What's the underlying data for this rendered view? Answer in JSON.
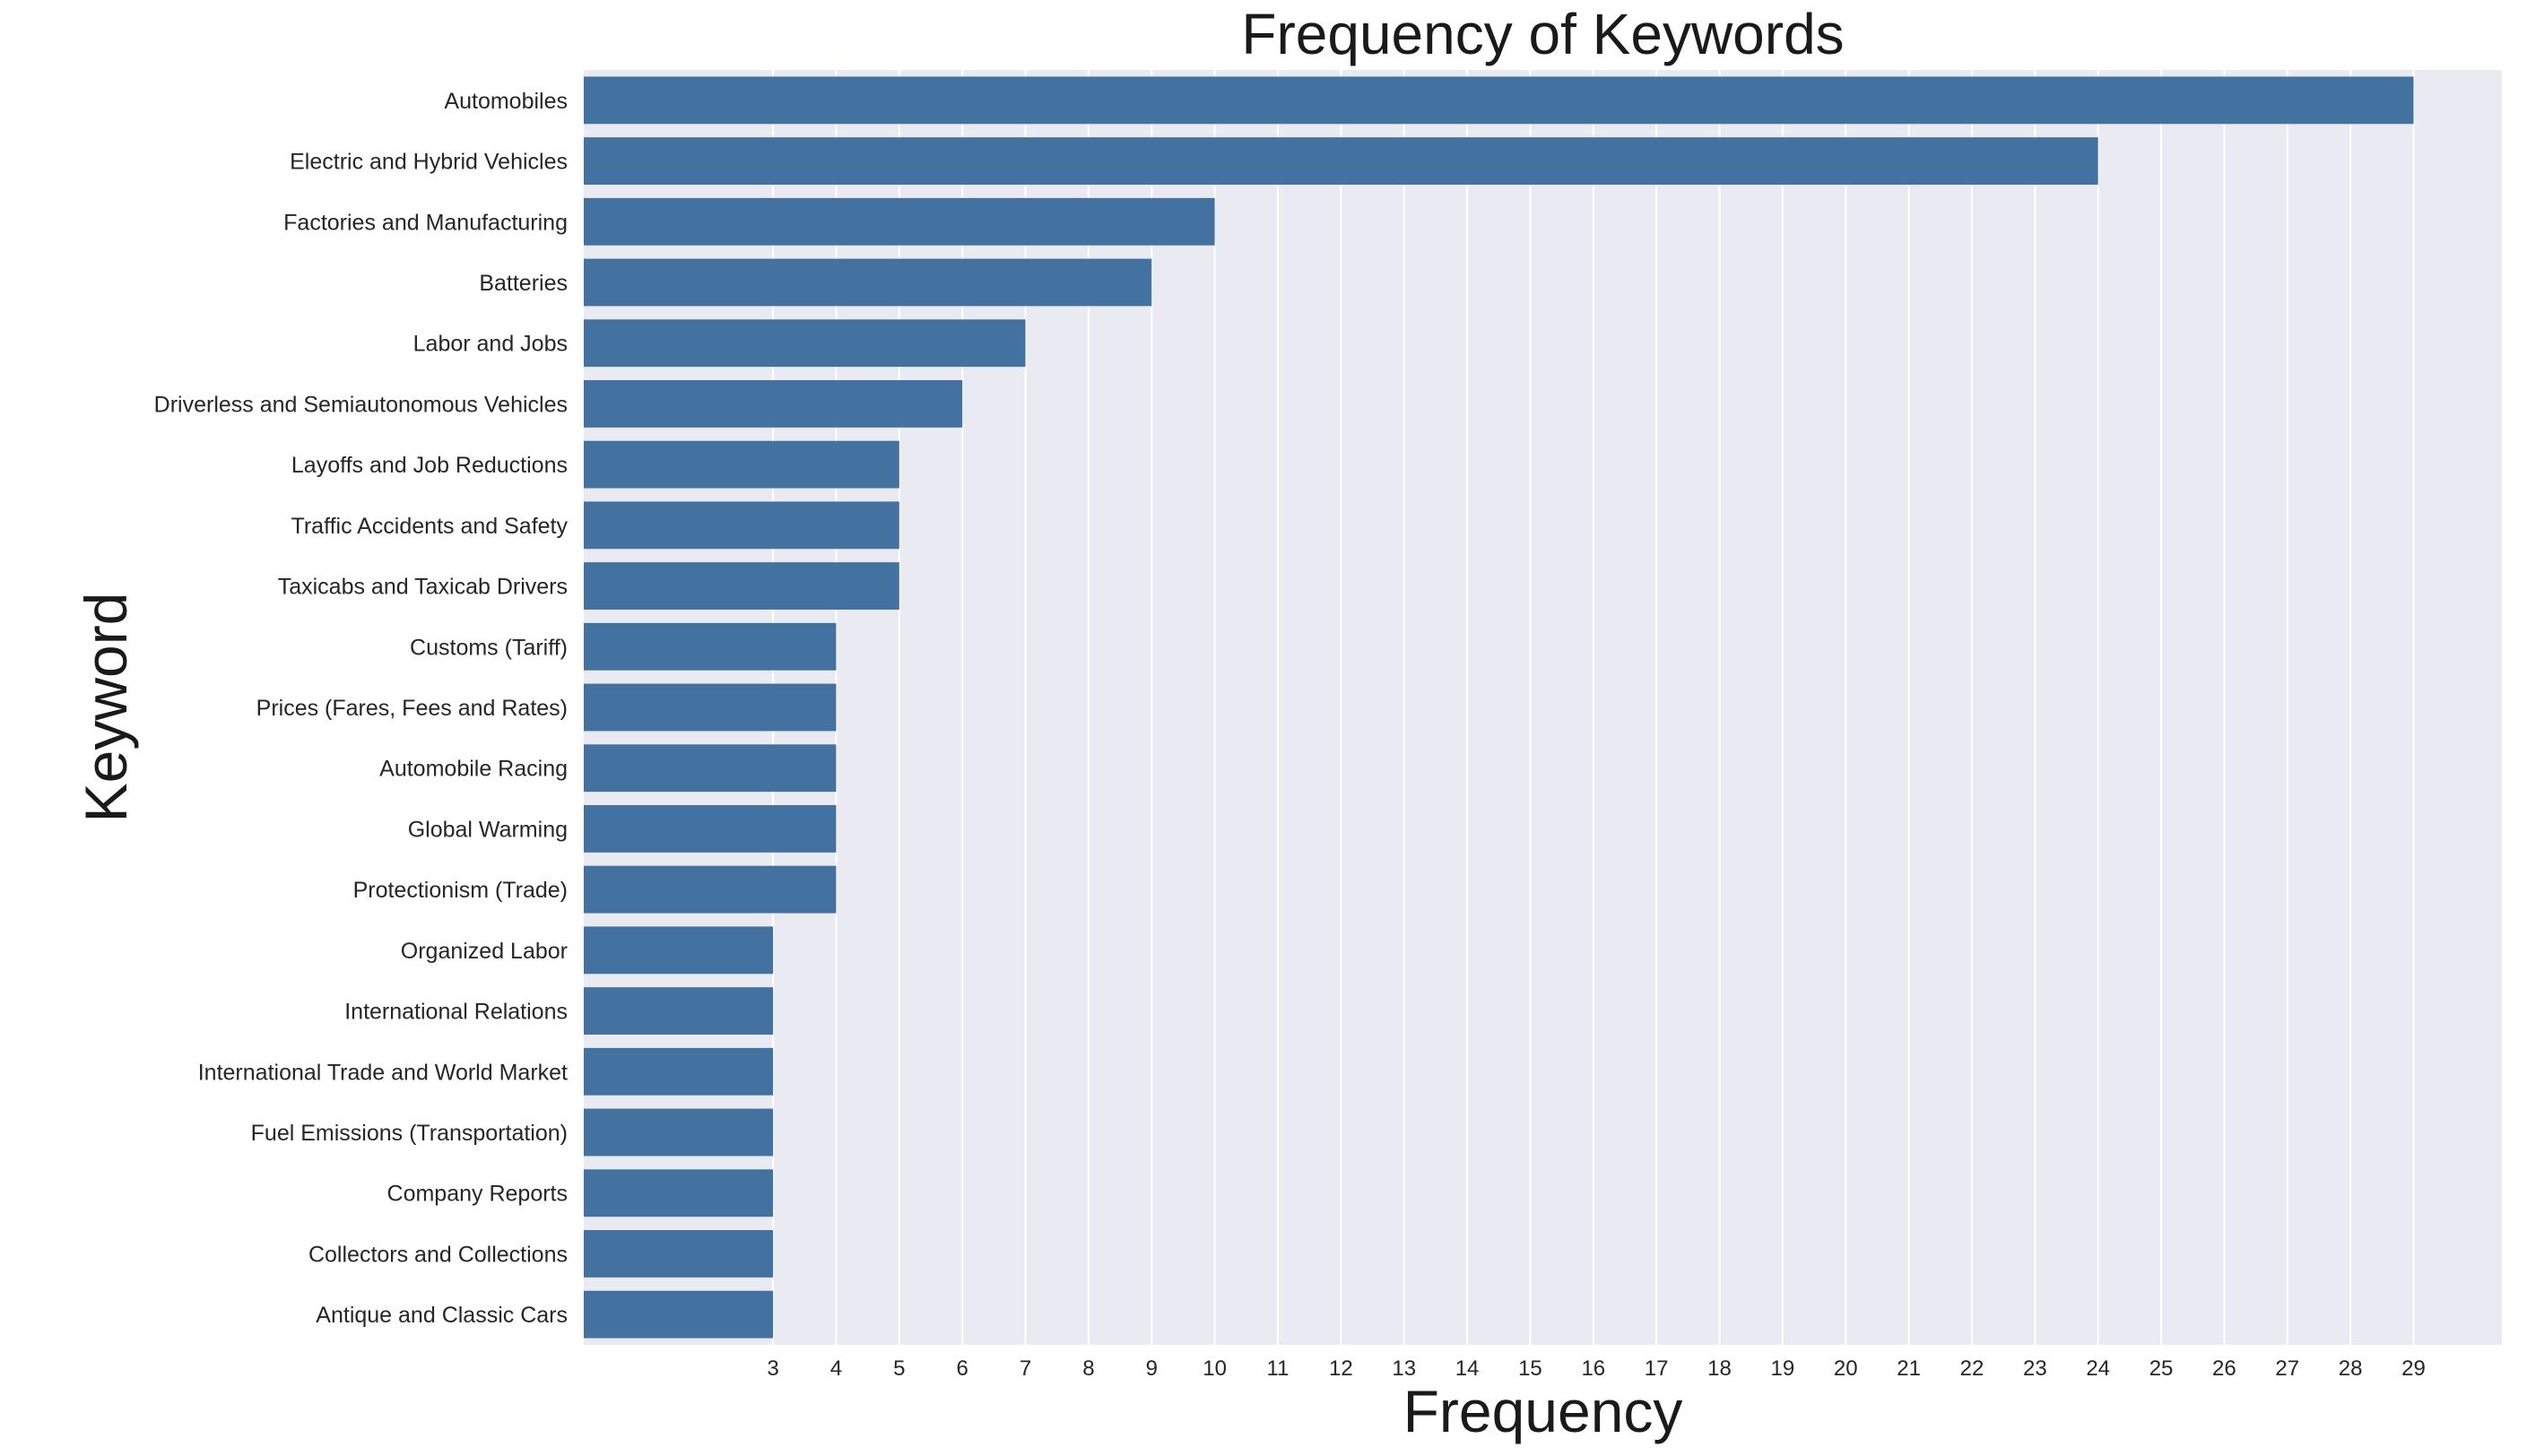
{
  "chart_data": {
    "type": "bar",
    "orientation": "horizontal",
    "title": "Frequency of Keywords",
    "xlabel": "Frequency",
    "ylabel": "Keyword",
    "categories": [
      "Automobiles",
      "Electric and Hybrid Vehicles",
      "Factories and Manufacturing",
      "Batteries",
      "Labor and Jobs",
      "Driverless and Semiautonomous Vehicles",
      "Layoffs and Job Reductions",
      "Traffic Accidents and Safety",
      "Taxicabs and Taxicab Drivers",
      "Customs (Tariff)",
      "Prices (Fares, Fees and Rates)",
      "Automobile Racing",
      "Global Warming",
      "Protectionism (Trade)",
      "Organized Labor",
      "International Relations",
      "International Trade and World Market",
      "Fuel Emissions (Transportation)",
      "Company Reports",
      "Collectors and Collections",
      "Antique and Classic Cars"
    ],
    "values": [
      29,
      24,
      10,
      9,
      7,
      6,
      5,
      5,
      5,
      4,
      4,
      4,
      4,
      4,
      3,
      3,
      3,
      3,
      3,
      3,
      3
    ],
    "xticks": [
      3,
      4,
      5,
      6,
      7,
      8,
      9,
      10,
      11,
      12,
      13,
      14,
      15,
      16,
      17,
      18,
      19,
      20,
      21,
      22,
      23,
      24,
      25,
      26,
      27,
      28,
      29
    ],
    "xlim": [
      0,
      30.4
    ],
    "grid": true,
    "bar_color": "#4472a0",
    "background_color": "#eaeaf2",
    "grid_color": "#ffffff"
  }
}
